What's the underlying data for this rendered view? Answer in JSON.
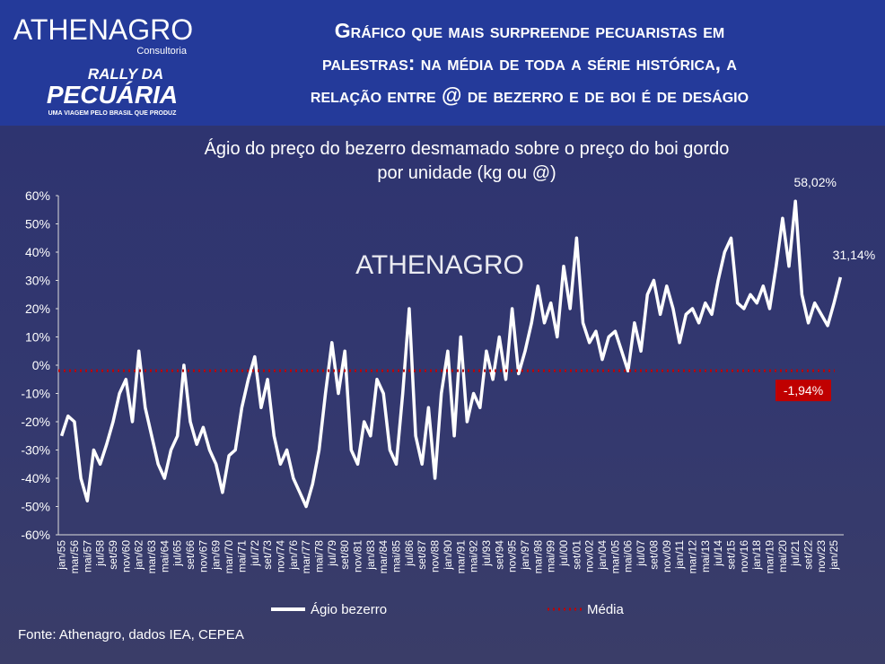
{
  "header": {
    "logo": "ATHENAGRO",
    "logo_sub": "Consultoria",
    "rally_top": "RALLY DA",
    "rally_main": "PECUÁRIA",
    "rally_tagline": "UMA VIAGEM PELO BRASIL QUE PRODUZ",
    "title_lines": [
      "Gráfico que mais surpreende pecuaristas em",
      "palestras: na média de toda a série histórica, a",
      "relação entre @ de bezerro e de boi é de deságio"
    ]
  },
  "chart_data": {
    "type": "line",
    "title_lines": [
      "Ágio do preço do bezerro desmamado sobre o preço do boi gordo",
      "por unidade  (kg ou @)"
    ],
    "watermark": "ATHENAGRO",
    "categories": [
      "jan/55",
      null,
      "mar/56",
      null,
      "mai/57",
      null,
      "jul/58",
      null,
      "set/59",
      null,
      "nov/60",
      null,
      "jan/62",
      null,
      "mar/63",
      null,
      "mai/64",
      null,
      "jul/65",
      null,
      "set/66",
      null,
      "nov/67",
      null,
      "jan/69",
      null,
      "mar/70",
      null,
      "mai/71",
      null,
      "jul/72",
      null,
      "set/73",
      null,
      "nov/74",
      null,
      "jan/76",
      null,
      "mar/77",
      null,
      "mai/78",
      null,
      "jul/79",
      null,
      "set/80",
      null,
      "nov/81",
      null,
      "jan/83",
      null,
      "mar/84",
      null,
      "mai/85",
      null,
      "jul/86",
      null,
      "set/87",
      null,
      "nov/88",
      null,
      "jan/90",
      null,
      "mar/91",
      null,
      "mai/92",
      null,
      "jul/93",
      null,
      "set/94",
      null,
      "nov/95",
      null,
      "jan/97",
      null,
      "mar/98",
      null,
      "mai/99",
      null,
      "jul/00",
      null,
      "set/01",
      null,
      "nov/02",
      null,
      "jan/04",
      null,
      "mar/05",
      null,
      "mai/06",
      null,
      "jul/07",
      null,
      "set/08",
      null,
      "nov/09",
      null,
      "jan/11",
      null,
      "mar/12",
      null,
      "mai/13",
      null,
      "jul/14",
      null,
      "set/15",
      null,
      "nov/16",
      null,
      "jan/18",
      null,
      "mar/19",
      null,
      "mai/20",
      null,
      "jul/21",
      null,
      "set/22",
      null,
      "nov/23",
      null,
      "jan/25",
      null
    ],
    "series": [
      {
        "name": "Ágio bezerro",
        "color": "#ffffff",
        "values": [
          -25,
          -18,
          -20,
          -40,
          -48,
          -30,
          -35,
          -28,
          -20,
          -10,
          -5,
          -20,
          5,
          -15,
          -25,
          -35,
          -40,
          -30,
          -25,
          0,
          -20,
          -28,
          -22,
          -30,
          -35,
          -45,
          -32,
          -30,
          -15,
          -5,
          3,
          -15,
          -5,
          -25,
          -35,
          -30,
          -40,
          -45,
          -50,
          -42,
          -30,
          -10,
          8,
          -10,
          5,
          -30,
          -35,
          -20,
          -25,
          -5,
          -10,
          -30,
          -35,
          -10,
          20,
          -25,
          -35,
          -15,
          -40,
          -10,
          5,
          -25,
          10,
          -20,
          -10,
          -15,
          5,
          -5,
          10,
          -5,
          20,
          -3,
          5,
          15,
          28,
          15,
          22,
          10,
          35,
          20,
          45,
          15,
          8,
          12,
          2,
          10,
          12,
          5,
          -2,
          15,
          5,
          25,
          30,
          18,
          28,
          20,
          8,
          18,
          20,
          15,
          22,
          18,
          30,
          40,
          45,
          22,
          20,
          25,
          22,
          28,
          20,
          35,
          52,
          35,
          58.02,
          25,
          15,
          22,
          18,
          14,
          22,
          31.14
        ],
        "value_labels": [
          null,
          null,
          null,
          null,
          null,
          null,
          null,
          null,
          null,
          null,
          null,
          null,
          null,
          null,
          null,
          null,
          null,
          null,
          null,
          null,
          null,
          null,
          null,
          null,
          null,
          null,
          null,
          null,
          null,
          null,
          null,
          null,
          null,
          null,
          null,
          null,
          null,
          null,
          null,
          null,
          null,
          null,
          null,
          null,
          null,
          null,
          null,
          null,
          null,
          null,
          null,
          null,
          null,
          null,
          null,
          null,
          null,
          null,
          null,
          null,
          null,
          null,
          null,
          null,
          null,
          null,
          null,
          null,
          null,
          null,
          null,
          null,
          null,
          null,
          null,
          null,
          null,
          null,
          null,
          null,
          null,
          null,
          null,
          null,
          null,
          null,
          null,
          null,
          null,
          null,
          null,
          null,
          null,
          null,
          null,
          null,
          null,
          null,
          null,
          null,
          null,
          null,
          null,
          null,
          null,
          null,
          null,
          null,
          null,
          null,
          null,
          null,
          null,
          null,
          "58,02%",
          null,
          null,
          null,
          null,
          null,
          null,
          "31,14%"
        ]
      }
    ],
    "mean": {
      "name": "Média",
      "color": "#c00000",
      "value": -1.94,
      "label": "-1,94%"
    },
    "ylim": [
      -60,
      60
    ],
    "yticks": [
      {
        "value": -60,
        "label": "-60%"
      },
      {
        "value": -50,
        "label": "-50%"
      },
      {
        "value": -40,
        "label": "-40%"
      },
      {
        "value": -30,
        "label": "-30%"
      },
      {
        "value": -20,
        "label": "-20%"
      },
      {
        "value": -10,
        "label": "-10%"
      },
      {
        "value": 0,
        "label": "0%"
      },
      {
        "value": 10,
        "label": "10%"
      },
      {
        "value": 20,
        "label": "20%"
      },
      {
        "value": 30,
        "label": "30%"
      },
      {
        "value": 40,
        "label": "40%"
      },
      {
        "value": 50,
        "label": "50%"
      },
      {
        "value": 60,
        "label": "60%"
      }
    ],
    "grid": false,
    "source": "Fonte: Athenagro, dados IEA, CEPEA"
  }
}
